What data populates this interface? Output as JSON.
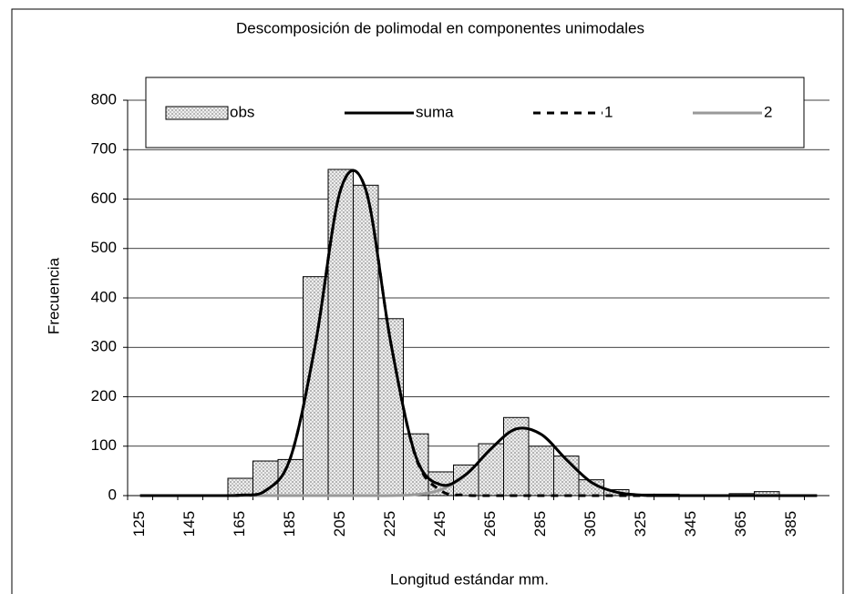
{
  "chart_data": {
    "type": "bar",
    "title": "Descomposición de polimodal en componentes unimodales",
    "xlabel": "Longitud estándar mm.",
    "ylabel": "Frecuencia",
    "categories": [
      "125",
      null,
      "145",
      null,
      "165",
      null,
      "185",
      null,
      "205",
      null,
      "225",
      null,
      "245",
      null,
      "265",
      null,
      "285",
      null,
      "305",
      null,
      "325",
      null,
      "345",
      null,
      "365",
      null,
      "385",
      null
    ],
    "series": [
      {
        "name": "obs",
        "type": "bar",
        "color": "#d9d9d9",
        "values": [
          0,
          0,
          0,
          0,
          35,
          70,
          73,
          443,
          660,
          628,
          358,
          125,
          48,
          62,
          105,
          158,
          100,
          80,
          32,
          12,
          3,
          3,
          0,
          0,
          4,
          8,
          0,
          0
        ]
      },
      {
        "name": "suma",
        "type": "line",
        "color": "#000000",
        "dashed": false,
        "values": [
          0,
          0,
          0,
          0,
          1,
          10,
          77,
          309,
          619,
          619,
          309,
          79,
          22,
          43,
          95,
          135,
          124,
          73,
          27,
          7,
          1,
          0,
          0,
          0,
          0,
          0,
          0,
          0
        ]
      },
      {
        "name": "1",
        "type": "line",
        "color": "#000000",
        "dashed": true,
        "values": [
          0,
          0,
          0,
          0,
          1,
          10,
          77,
          309,
          619,
          619,
          309,
          77,
          10,
          1,
          0,
          0,
          0,
          0,
          0,
          0,
          0,
          0,
          0,
          0,
          0,
          0,
          0,
          0
        ]
      },
      {
        "name": "2",
        "type": "line",
        "color": "#999999",
        "dashed": false,
        "values": [
          0,
          0,
          0,
          0,
          0,
          0,
          0,
          0,
          0,
          0,
          0,
          2,
          12,
          42,
          95,
          135,
          124,
          73,
          27,
          7,
          1,
          0,
          0,
          0,
          0,
          0,
          0,
          0
        ]
      }
    ],
    "ylim": [
      0,
      800
    ],
    "yticks": [
      0,
      100,
      200,
      300,
      400,
      500,
      600,
      700,
      800
    ],
    "grid": true,
    "legend": "top"
  }
}
